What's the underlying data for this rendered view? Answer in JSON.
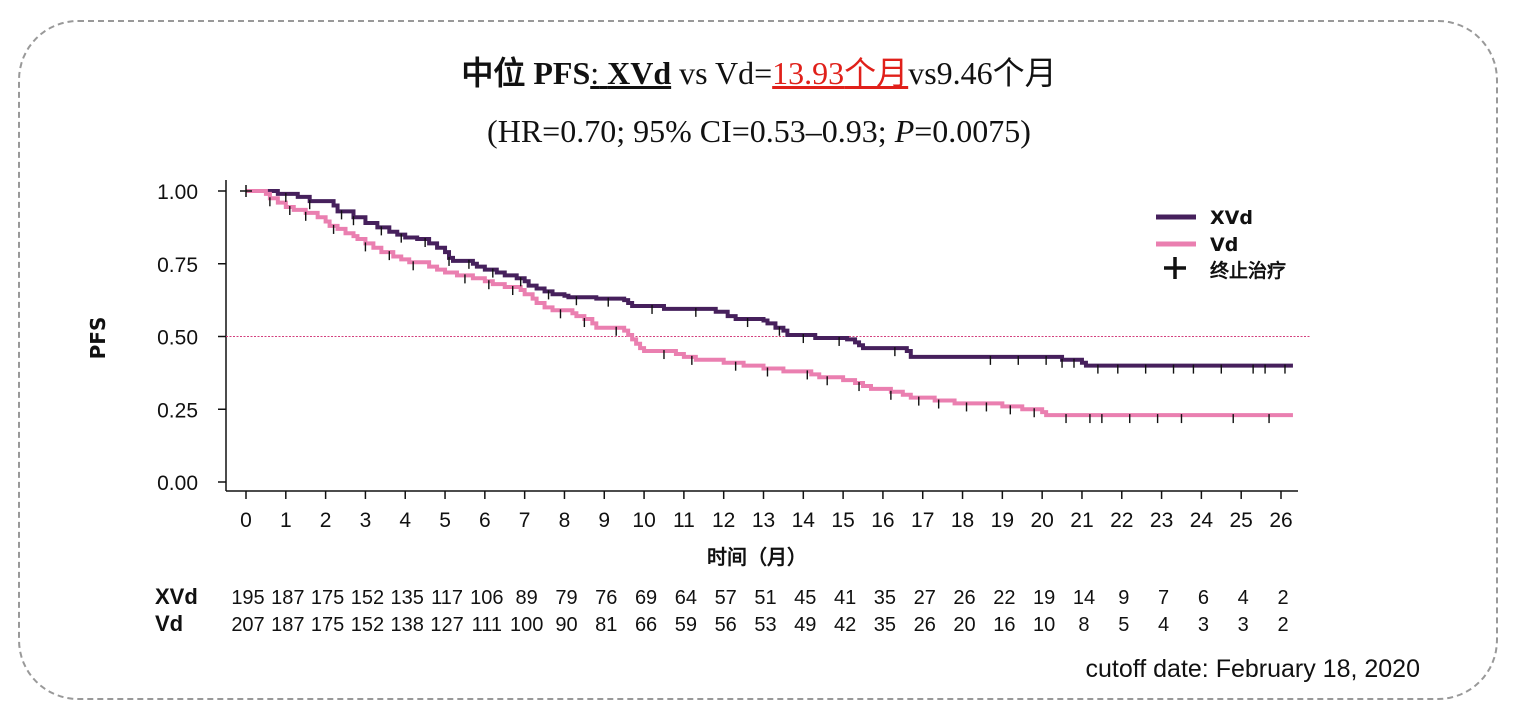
{
  "title": {
    "prefix_cjk": "中位",
    "prefix_pfs": "PFS",
    "colon": ":",
    "xvd": "XVd",
    "vs_vd": "vs Vd=",
    "highlight_num": "13.93",
    "highlight_unit": "个月",
    "rest_num": "vs9.46",
    "rest_unit": "个月"
  },
  "subtitle": {
    "before_p": "(HR=0.70; 95% CI=0.53–0.93; ",
    "p_label": "P",
    "after_p": "=0.0075)"
  },
  "colors": {
    "xvd": "#46205c",
    "vd": "#ea7fb0",
    "reference": "#d3407e",
    "title_highlight": "#e0201a"
  },
  "chart_data": {
    "type": "line",
    "title": "中位 PFS: XVd vs Vd=13.93个月vs9.46个月",
    "xlabel": "时间（月）",
    "ylabel": "PFS",
    "xlim": [
      0,
      26.3
    ],
    "ylim": [
      0,
      1.0
    ],
    "x_ticks": [
      0,
      1,
      2,
      3,
      4,
      5,
      6,
      7,
      8,
      9,
      10,
      11,
      12,
      13,
      14,
      15,
      16,
      17,
      18,
      19,
      20,
      21,
      22,
      23,
      24,
      25,
      26
    ],
    "y_ticks": [
      "0.00",
      "0.25",
      "0.50",
      "0.75",
      "1.00"
    ],
    "reference_line": 0.5,
    "legend": {
      "position": "top-right",
      "items": [
        {
          "name": "XVd",
          "color_key": "xvd"
        },
        {
          "name": "Vd",
          "color_key": "vd"
        },
        {
          "name": "终止治疗",
          "marker": "+"
        }
      ]
    },
    "series": [
      {
        "name": "XVd",
        "color_key": "xvd",
        "steps": [
          [
            0,
            1.0
          ],
          [
            0.8,
            0.99
          ],
          [
            1.3,
            0.98
          ],
          [
            1.6,
            0.965
          ],
          [
            2.2,
            0.95
          ],
          [
            2.3,
            0.93
          ],
          [
            2.7,
            0.91
          ],
          [
            3.0,
            0.89
          ],
          [
            3.3,
            0.875
          ],
          [
            3.6,
            0.86
          ],
          [
            3.8,
            0.85
          ],
          [
            4.0,
            0.84
          ],
          [
            4.3,
            0.835
          ],
          [
            4.6,
            0.82
          ],
          [
            4.8,
            0.805
          ],
          [
            5.0,
            0.79
          ],
          [
            5.1,
            0.77
          ],
          [
            5.2,
            0.76
          ],
          [
            5.7,
            0.75
          ],
          [
            5.8,
            0.74
          ],
          [
            6.0,
            0.73
          ],
          [
            6.3,
            0.72
          ],
          [
            6.5,
            0.71
          ],
          [
            6.8,
            0.7
          ],
          [
            7.0,
            0.69
          ],
          [
            7.1,
            0.675
          ],
          [
            7.3,
            0.665
          ],
          [
            7.5,
            0.655
          ],
          [
            7.7,
            0.645
          ],
          [
            8.0,
            0.64
          ],
          [
            8.1,
            0.635
          ],
          [
            8.8,
            0.63
          ],
          [
            9.5,
            0.625
          ],
          [
            9.6,
            0.615
          ],
          [
            9.7,
            0.605
          ],
          [
            10.5,
            0.595
          ],
          [
            11.8,
            0.585
          ],
          [
            12.1,
            0.57
          ],
          [
            12.3,
            0.56
          ],
          [
            13.0,
            0.555
          ],
          [
            13.1,
            0.545
          ],
          [
            13.3,
            0.53
          ],
          [
            13.5,
            0.52
          ],
          [
            13.6,
            0.505
          ],
          [
            14.3,
            0.495
          ],
          [
            15.1,
            0.49
          ],
          [
            15.3,
            0.48
          ],
          [
            15.4,
            0.47
          ],
          [
            15.5,
            0.46
          ],
          [
            16.6,
            0.45
          ],
          [
            16.7,
            0.43
          ],
          [
            20.5,
            0.42
          ],
          [
            21.0,
            0.41
          ],
          [
            21.1,
            0.4
          ],
          [
            26.3,
            0.4
          ]
        ],
        "censor_x": [
          1.0,
          1.6,
          2.4,
          2.7,
          3.4,
          3.9,
          4.5,
          5.1,
          5.6,
          6.2,
          6.9,
          7.6,
          8.3,
          9.1,
          10.2,
          11.3,
          12.6,
          13.4,
          14.0,
          14.9,
          16.3,
          18.7,
          19.4,
          20.1,
          20.5,
          20.8,
          21.4,
          21.9,
          22.6,
          23.3,
          23.8,
          24.5,
          25.3,
          25.6,
          26.1
        ]
      },
      {
        "name": "Vd",
        "color_key": "vd",
        "steps": [
          [
            0,
            1.0
          ],
          [
            0.5,
            0.99
          ],
          [
            0.6,
            0.975
          ],
          [
            0.8,
            0.96
          ],
          [
            1.0,
            0.945
          ],
          [
            1.2,
            0.935
          ],
          [
            1.5,
            0.925
          ],
          [
            1.8,
            0.91
          ],
          [
            2.0,
            0.895
          ],
          [
            2.1,
            0.88
          ],
          [
            2.3,
            0.87
          ],
          [
            2.5,
            0.855
          ],
          [
            2.7,
            0.845
          ],
          [
            2.8,
            0.835
          ],
          [
            3.0,
            0.82
          ],
          [
            3.2,
            0.805
          ],
          [
            3.4,
            0.79
          ],
          [
            3.7,
            0.775
          ],
          [
            3.9,
            0.765
          ],
          [
            4.1,
            0.755
          ],
          [
            4.6,
            0.74
          ],
          [
            4.8,
            0.73
          ],
          [
            5.0,
            0.72
          ],
          [
            5.3,
            0.71
          ],
          [
            5.7,
            0.7
          ],
          [
            6.0,
            0.69
          ],
          [
            6.2,
            0.68
          ],
          [
            6.5,
            0.67
          ],
          [
            6.9,
            0.66
          ],
          [
            7.0,
            0.645
          ],
          [
            7.2,
            0.63
          ],
          [
            7.3,
            0.615
          ],
          [
            7.5,
            0.6
          ],
          [
            7.7,
            0.59
          ],
          [
            8.2,
            0.58
          ],
          [
            8.3,
            0.57
          ],
          [
            8.5,
            0.56
          ],
          [
            8.7,
            0.545
          ],
          [
            8.8,
            0.53
          ],
          [
            9.5,
            0.52
          ],
          [
            9.6,
            0.505
          ],
          [
            9.7,
            0.49
          ],
          [
            9.8,
            0.475
          ],
          [
            9.9,
            0.46
          ],
          [
            10.0,
            0.45
          ],
          [
            10.8,
            0.44
          ],
          [
            11.0,
            0.43
          ],
          [
            11.3,
            0.42
          ],
          [
            12.0,
            0.41
          ],
          [
            12.5,
            0.4
          ],
          [
            13.0,
            0.39
          ],
          [
            13.5,
            0.38
          ],
          [
            14.2,
            0.37
          ],
          [
            14.4,
            0.36
          ],
          [
            15.0,
            0.35
          ],
          [
            15.3,
            0.34
          ],
          [
            15.5,
            0.33
          ],
          [
            15.7,
            0.32
          ],
          [
            16.2,
            0.31
          ],
          [
            16.5,
            0.3
          ],
          [
            16.7,
            0.29
          ],
          [
            17.3,
            0.28
          ],
          [
            17.8,
            0.27
          ],
          [
            19.0,
            0.26
          ],
          [
            19.5,
            0.25
          ],
          [
            20.0,
            0.24
          ],
          [
            20.1,
            0.23
          ],
          [
            26.3,
            0.23
          ]
        ],
        "censor_x": [
          0.6,
          1.1,
          1.5,
          2.2,
          3.0,
          3.6,
          4.2,
          5.5,
          6.1,
          6.7,
          7.9,
          8.5,
          9.3,
          10.5,
          11.2,
          12.3,
          13.1,
          14.1,
          14.6,
          15.4,
          16.2,
          16.9,
          17.4,
          18.1,
          18.6,
          19.2,
          19.8,
          20.6,
          21.2,
          21.5,
          22.2,
          22.9,
          23.5,
          24.8,
          25.7
        ]
      }
    ]
  },
  "risk_table": {
    "rows": [
      {
        "label": "XVd",
        "values": [
          "195",
          "187",
          "175",
          "152",
          "135",
          "117",
          "106",
          "89",
          "79",
          "76",
          "69",
          "64",
          "57",
          "51",
          "45",
          "41",
          "35",
          "27",
          "26",
          "22",
          "19",
          "14",
          "9",
          "7",
          "6",
          "4",
          "2"
        ]
      },
      {
        "label": "Vd",
        "values": [
          "207",
          "187",
          "175",
          "152",
          "138",
          "127",
          "111",
          "100",
          "90",
          "81",
          "66",
          "59",
          "56",
          "53",
          "49",
          "42",
          "35",
          "26",
          "20",
          "16",
          "10",
          "8",
          "5",
          "4",
          "3",
          "3",
          "2"
        ]
      }
    ]
  },
  "cutoff": "cutoff date: February 18, 2020"
}
